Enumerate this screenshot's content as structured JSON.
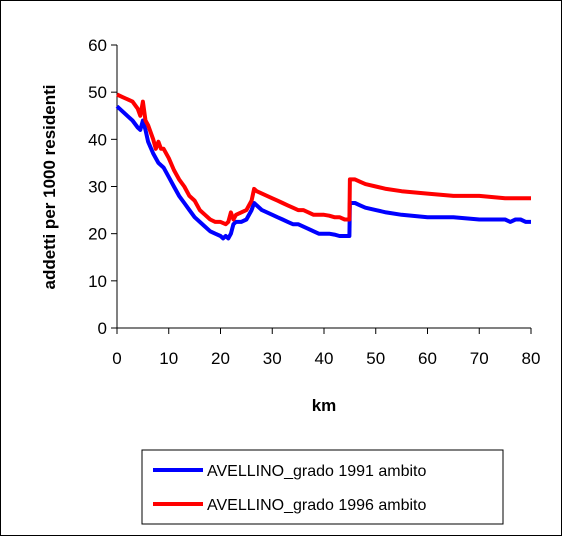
{
  "chart_data": {
    "type": "line",
    "xlabel": "km",
    "ylabel": "addetti per 1000 residenti",
    "xlim": [
      0,
      80
    ],
    "ylim": [
      0,
      60
    ],
    "x_ticks": [
      0,
      10,
      20,
      30,
      40,
      50,
      60,
      70,
      80
    ],
    "y_ticks": [
      0,
      10,
      20,
      30,
      40,
      50,
      60
    ],
    "grid": false,
    "legend_position": "bottom",
    "series": [
      {
        "name": "AVELLINO_grado 1991 ambito",
        "color": "#0000ff",
        "points": [
          [
            0,
            47
          ],
          [
            2,
            45
          ],
          [
            3,
            44
          ],
          [
            4,
            42.5
          ],
          [
            4.5,
            42
          ],
          [
            5,
            44
          ],
          [
            5.5,
            42
          ],
          [
            6,
            39.5
          ],
          [
            7,
            37
          ],
          [
            8,
            35
          ],
          [
            9,
            34
          ],
          [
            10,
            32
          ],
          [
            11,
            30
          ],
          [
            12,
            28
          ],
          [
            13,
            26.5
          ],
          [
            14,
            25
          ],
          [
            15,
            23.5
          ],
          [
            16,
            22.5
          ],
          [
            17,
            21.5
          ],
          [
            18,
            20.5
          ],
          [
            19,
            20
          ],
          [
            20,
            19.5
          ],
          [
            20.5,
            19
          ],
          [
            21,
            19.5
          ],
          [
            21.5,
            19
          ],
          [
            22,
            20
          ],
          [
            22.5,
            22
          ],
          [
            23,
            22.5
          ],
          [
            24,
            22.5
          ],
          [
            25,
            23
          ],
          [
            26,
            25
          ],
          [
            26.5,
            26.5
          ],
          [
            27,
            26
          ],
          [
            28,
            25
          ],
          [
            29,
            24.5
          ],
          [
            30,
            24
          ],
          [
            31,
            23.5
          ],
          [
            32,
            23
          ],
          [
            33,
            22.5
          ],
          [
            34,
            22
          ],
          [
            35,
            22
          ],
          [
            36,
            21.5
          ],
          [
            37,
            21
          ],
          [
            38,
            20.5
          ],
          [
            39,
            20
          ],
          [
            40,
            20
          ],
          [
            41,
            20
          ],
          [
            42,
            19.8
          ],
          [
            43,
            19.5
          ],
          [
            44,
            19.5
          ],
          [
            44.9,
            19.5
          ],
          [
            45,
            26.5
          ],
          [
            46,
            26.5
          ],
          [
            47,
            26
          ],
          [
            48,
            25.5
          ],
          [
            50,
            25
          ],
          [
            52,
            24.5
          ],
          [
            55,
            24
          ],
          [
            60,
            23.5
          ],
          [
            65,
            23.5
          ],
          [
            70,
            23
          ],
          [
            75,
            23
          ],
          [
            76,
            22.5
          ],
          [
            77,
            23
          ],
          [
            78,
            23
          ],
          [
            79,
            22.5
          ],
          [
            80,
            22.5
          ]
        ]
      },
      {
        "name": "AVELLINO_grado 1996 ambito",
        "color": "#ff0000",
        "points": [
          [
            0,
            49.5
          ],
          [
            1,
            49
          ],
          [
            2,
            48.5
          ],
          [
            3,
            48
          ],
          [
            4,
            46.5
          ],
          [
            4.5,
            45
          ],
          [
            5,
            48
          ],
          [
            5.5,
            44
          ],
          [
            6,
            43
          ],
          [
            7,
            40
          ],
          [
            7.5,
            38
          ],
          [
            8,
            39.5
          ],
          [
            8.5,
            38
          ],
          [
            9,
            38
          ],
          [
            10,
            36
          ],
          [
            11,
            33.5
          ],
          [
            12,
            31.5
          ],
          [
            13,
            30
          ],
          [
            14,
            28
          ],
          [
            15,
            27
          ],
          [
            16,
            25
          ],
          [
            17,
            24
          ],
          [
            18,
            23
          ],
          [
            19,
            22.5
          ],
          [
            20,
            22.5
          ],
          [
            21,
            22
          ],
          [
            21.5,
            22.5
          ],
          [
            22,
            24.5
          ],
          [
            22.5,
            23
          ],
          [
            23,
            24
          ],
          [
            24,
            24.5
          ],
          [
            25,
            25
          ],
          [
            26,
            27
          ],
          [
            26.5,
            29.5
          ],
          [
            27,
            29
          ],
          [
            28,
            28.5
          ],
          [
            29,
            28
          ],
          [
            30,
            27.5
          ],
          [
            31,
            27
          ],
          [
            32,
            26.5
          ],
          [
            33,
            26
          ],
          [
            34,
            25.5
          ],
          [
            35,
            25
          ],
          [
            36,
            25
          ],
          [
            37,
            24.5
          ],
          [
            38,
            24
          ],
          [
            39,
            24
          ],
          [
            40,
            24
          ],
          [
            41,
            23.8
          ],
          [
            42,
            23.5
          ],
          [
            43,
            23.5
          ],
          [
            44,
            23
          ],
          [
            44.9,
            23
          ],
          [
            45,
            31.5
          ],
          [
            46,
            31.5
          ],
          [
            47,
            31
          ],
          [
            48,
            30.5
          ],
          [
            50,
            30
          ],
          [
            52,
            29.5
          ],
          [
            55,
            29
          ],
          [
            60,
            28.5
          ],
          [
            65,
            28
          ],
          [
            70,
            28
          ],
          [
            75,
            27.5
          ],
          [
            78,
            27.5
          ],
          [
            80,
            27.5
          ]
        ]
      }
    ]
  }
}
